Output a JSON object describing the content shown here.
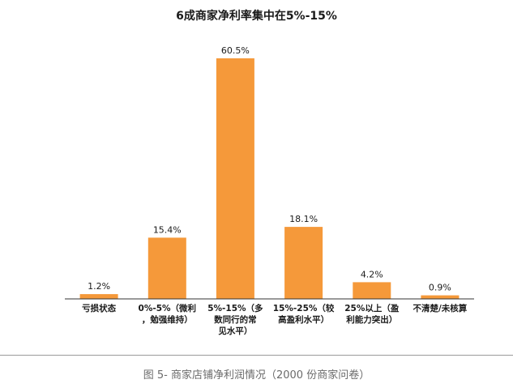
{
  "chart_data": {
    "type": "bar",
    "title": "6成商家净利率集中在5%-15%",
    "categories": [
      [
        "亏损状态"
      ],
      [
        "0%-5%（微利",
        "，勉强维持）"
      ],
      [
        "5%-15%（多",
        "数同行的常",
        "见水平）"
      ],
      [
        "15%-25%（较",
        "高盈利水平）"
      ],
      [
        "25%以上（盈",
        "利能力突出）"
      ],
      [
        "不清楚/未核算"
      ]
    ],
    "values": [
      1.2,
      15.4,
      60.5,
      18.1,
      4.2,
      0.9
    ],
    "value_labels": [
      "1.2%",
      "15.4%",
      "60.5%",
      "18.1%",
      "4.2%",
      "0.9%"
    ],
    "ylim": [
      0,
      60.5
    ],
    "bar_color": "#F5993A",
    "grid": false,
    "legend": "none"
  },
  "caption": "图 5- 商家店铺净利润情况（2000 份商家问卷）"
}
